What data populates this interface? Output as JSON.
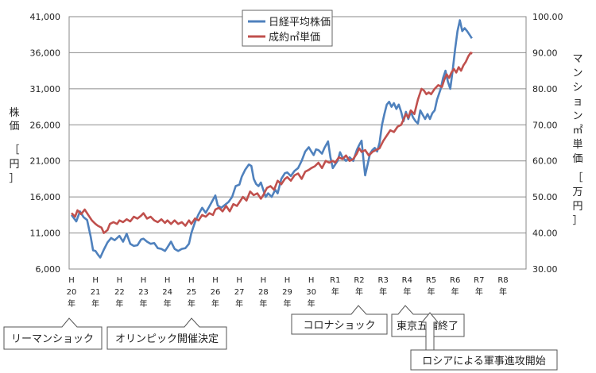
{
  "chart_data": {
    "type": "line",
    "ylabel_left": "株価［円］",
    "ylabel_right": "マンション㎡単価［万円］",
    "left_axis": {
      "min": 6000,
      "max": 41000,
      "ticks": [
        "6,000",
        "11,000",
        "16,000",
        "21,000",
        "26,000",
        "31,000",
        "36,000",
        "41,000"
      ],
      "tick_values": [
        6000,
        11000,
        16000,
        21000,
        26000,
        31000,
        36000,
        41000
      ]
    },
    "right_axis": {
      "min": 30,
      "max": 100,
      "ticks": [
        "30.00",
        "40.00",
        "50.00",
        "60.00",
        "70.00",
        "80.00",
        "90.00",
        "100.00"
      ],
      "tick_values": [
        30,
        40,
        50,
        60,
        70,
        80,
        90,
        100
      ]
    },
    "x_axis": {
      "min": 20,
      "max": 38,
      "labels": [
        {
          "top": "H",
          "mid": "20",
          "bottom": "年",
          "x": 20
        },
        {
          "top": "H",
          "mid": "21",
          "bottom": "年",
          "x": 21
        },
        {
          "top": "H",
          "mid": "22",
          "bottom": "年",
          "x": 22
        },
        {
          "top": "H",
          "mid": "23",
          "bottom": "年",
          "x": 23
        },
        {
          "top": "H",
          "mid": "24",
          "bottom": "年",
          "x": 24
        },
        {
          "top": "H",
          "mid": "25",
          "bottom": "年",
          "x": 25
        },
        {
          "top": "H",
          "mid": "26",
          "bottom": "年",
          "x": 26
        },
        {
          "top": "H",
          "mid": "27",
          "bottom": "年",
          "x": 27
        },
        {
          "top": "H",
          "mid": "28",
          "bottom": "年",
          "x": 28
        },
        {
          "top": "H",
          "mid": "29",
          "bottom": "年",
          "x": 29
        },
        {
          "top": "H",
          "mid": "30",
          "bottom": "年",
          "x": 30
        },
        {
          "top": "R1",
          "mid": "年",
          "bottom": "",
          "x": 31
        },
        {
          "top": "R2",
          "mid": "年",
          "bottom": "",
          "x": 32
        },
        {
          "top": "R3",
          "mid": "年",
          "bottom": "",
          "x": 33
        },
        {
          "top": "R4",
          "mid": "年",
          "bottom": "",
          "x": 34
        },
        {
          "top": "R5",
          "mid": "年",
          "bottom": "",
          "x": 35
        },
        {
          "top": "R6",
          "mid": "年",
          "bottom": "",
          "x": 36
        },
        {
          "top": "R7",
          "mid": "年",
          "bottom": "",
          "x": 37
        },
        {
          "top": "R8",
          "mid": "年",
          "bottom": "",
          "x": 38
        }
      ]
    },
    "grid": true,
    "legend_position": "top-center",
    "series": [
      {
        "name": "日経平均株価",
        "axis": "left",
        "color": "#4f81bd",
        "points": [
          [
            20.0,
            13500
          ],
          [
            20.2,
            12600
          ],
          [
            20.35,
            14000
          ],
          [
            20.5,
            13200
          ],
          [
            20.65,
            12800
          ],
          [
            20.8,
            10500
          ],
          [
            20.9,
            8600
          ],
          [
            21.0,
            8500
          ],
          [
            21.1,
            8000
          ],
          [
            21.2,
            7600
          ],
          [
            21.35,
            8700
          ],
          [
            21.5,
            9700
          ],
          [
            21.65,
            10300
          ],
          [
            21.8,
            10000
          ],
          [
            22.0,
            10600
          ],
          [
            22.15,
            9800
          ],
          [
            22.3,
            10900
          ],
          [
            22.45,
            9500
          ],
          [
            22.6,
            9200
          ],
          [
            22.75,
            9300
          ],
          [
            22.9,
            10100
          ],
          [
            23.0,
            10200
          ],
          [
            23.15,
            9800
          ],
          [
            23.3,
            9500
          ],
          [
            23.45,
            9600
          ],
          [
            23.6,
            8900
          ],
          [
            23.75,
            8800
          ],
          [
            23.9,
            8500
          ],
          [
            24.0,
            9000
          ],
          [
            24.15,
            9800
          ],
          [
            24.3,
            8800
          ],
          [
            24.45,
            8500
          ],
          [
            24.6,
            8800
          ],
          [
            24.75,
            8900
          ],
          [
            24.9,
            9500
          ],
          [
            25.0,
            11000
          ],
          [
            25.15,
            12500
          ],
          [
            25.3,
            13600
          ],
          [
            25.45,
            14500
          ],
          [
            25.6,
            13800
          ],
          [
            25.75,
            14700
          ],
          [
            25.9,
            15600
          ],
          [
            26.0,
            16200
          ],
          [
            26.1,
            14800
          ],
          [
            26.25,
            14500
          ],
          [
            26.4,
            14900
          ],
          [
            26.55,
            15300
          ],
          [
            26.7,
            16000
          ],
          [
            26.85,
            17500
          ],
          [
            27.0,
            17700
          ],
          [
            27.1,
            18800
          ],
          [
            27.25,
            19800
          ],
          [
            27.4,
            20500
          ],
          [
            27.5,
            20300
          ],
          [
            27.6,
            18500
          ],
          [
            27.7,
            17800
          ],
          [
            27.8,
            17500
          ],
          [
            27.9,
            18000
          ],
          [
            28.0,
            17000
          ],
          [
            28.1,
            16000
          ],
          [
            28.2,
            16500
          ],
          [
            28.35,
            16000
          ],
          [
            28.5,
            17000
          ],
          [
            28.6,
            16500
          ],
          [
            28.75,
            18500
          ],
          [
            28.9,
            19300
          ],
          [
            29.0,
            19400
          ],
          [
            29.15,
            18900
          ],
          [
            29.3,
            19600
          ],
          [
            29.45,
            20000
          ],
          [
            29.6,
            21000
          ],
          [
            29.75,
            22300
          ],
          [
            29.9,
            22900
          ],
          [
            30.0,
            22300
          ],
          [
            30.1,
            21800
          ],
          [
            30.2,
            22600
          ],
          [
            30.3,
            22500
          ],
          [
            30.45,
            22000
          ],
          [
            30.55,
            22800
          ],
          [
            30.7,
            23700
          ],
          [
            30.8,
            21500
          ],
          [
            30.9,
            20000
          ],
          [
            31.0,
            20500
          ],
          [
            31.1,
            21000
          ],
          [
            31.2,
            22200
          ],
          [
            31.3,
            21500
          ],
          [
            31.45,
            21000
          ],
          [
            31.6,
            21500
          ],
          [
            31.75,
            21000
          ],
          [
            31.9,
            22500
          ],
          [
            32.0,
            23200
          ],
          [
            32.1,
            23800
          ],
          [
            32.2,
            20500
          ],
          [
            32.25,
            19000
          ],
          [
            32.35,
            20500
          ],
          [
            32.45,
            22000
          ],
          [
            32.55,
            22500
          ],
          [
            32.65,
            22800
          ],
          [
            32.75,
            22300
          ],
          [
            32.85,
            23500
          ],
          [
            32.95,
            26000
          ],
          [
            33.05,
            27500
          ],
          [
            33.15,
            28800
          ],
          [
            33.25,
            29200
          ],
          [
            33.35,
            28500
          ],
          [
            33.45,
            29000
          ],
          [
            33.55,
            28200
          ],
          [
            33.65,
            28800
          ],
          [
            33.75,
            27800
          ],
          [
            33.85,
            26500
          ],
          [
            33.95,
            27800
          ],
          [
            34.05,
            26800
          ],
          [
            34.15,
            27800
          ],
          [
            34.25,
            27000
          ],
          [
            34.35,
            26500
          ],
          [
            34.45,
            26200
          ],
          [
            34.55,
            28000
          ],
          [
            34.65,
            27400
          ],
          [
            34.75,
            26800
          ],
          [
            34.85,
            27500
          ],
          [
            34.95,
            26800
          ],
          [
            35.05,
            27600
          ],
          [
            35.15,
            28000
          ],
          [
            35.25,
            29500
          ],
          [
            35.4,
            31000
          ],
          [
            35.5,
            32500
          ],
          [
            35.6,
            33500
          ],
          [
            35.7,
            32000
          ],
          [
            35.8,
            31000
          ],
          [
            35.9,
            33500
          ],
          [
            36.0,
            36500
          ],
          [
            36.1,
            39000
          ],
          [
            36.2,
            40500
          ],
          [
            36.3,
            39000
          ],
          [
            36.4,
            39400
          ],
          [
            36.5,
            39000
          ],
          [
            36.6,
            38500
          ],
          [
            36.7,
            38000
          ]
        ]
      },
      {
        "name": "成約㎡単価",
        "axis": "right",
        "color": "#c0504d",
        "points": [
          [
            20.0,
            45.5
          ],
          [
            20.15,
            44.5
          ],
          [
            20.25,
            46.3
          ],
          [
            20.4,
            45.2
          ],
          [
            20.55,
            46.5
          ],
          [
            20.7,
            45.0
          ],
          [
            20.85,
            43.5
          ],
          [
            21.0,
            42.5
          ],
          [
            21.1,
            42.0
          ],
          [
            21.25,
            41.5
          ],
          [
            21.35,
            40.0
          ],
          [
            21.5,
            40.8
          ],
          [
            21.6,
            42.5
          ],
          [
            21.75,
            43.0
          ],
          [
            21.9,
            42.5
          ],
          [
            22.0,
            43.5
          ],
          [
            22.15,
            43.0
          ],
          [
            22.3,
            43.8
          ],
          [
            22.45,
            43.2
          ],
          [
            22.6,
            44.5
          ],
          [
            22.75,
            44.0
          ],
          [
            22.9,
            44.8
          ],
          [
            23.0,
            45.5
          ],
          [
            23.15,
            44.0
          ],
          [
            23.3,
            44.5
          ],
          [
            23.45,
            43.5
          ],
          [
            23.6,
            43.0
          ],
          [
            23.75,
            43.8
          ],
          [
            23.9,
            42.8
          ],
          [
            24.0,
            43.5
          ],
          [
            24.15,
            42.5
          ],
          [
            24.3,
            43.5
          ],
          [
            24.45,
            42.5
          ],
          [
            24.6,
            43.0
          ],
          [
            24.75,
            42.0
          ],
          [
            24.9,
            43.5
          ],
          [
            25.0,
            42.5
          ],
          [
            25.15,
            44.0
          ],
          [
            25.3,
            43.5
          ],
          [
            25.45,
            45.0
          ],
          [
            25.6,
            44.5
          ],
          [
            25.75,
            45.5
          ],
          [
            25.9,
            45.0
          ],
          [
            26.0,
            46.5
          ],
          [
            26.15,
            47.0
          ],
          [
            26.3,
            46.0
          ],
          [
            26.45,
            47.5
          ],
          [
            26.6,
            46.0
          ],
          [
            26.75,
            48.0
          ],
          [
            26.9,
            47.5
          ],
          [
            27.0,
            48.5
          ],
          [
            27.15,
            50.0
          ],
          [
            27.3,
            49.0
          ],
          [
            27.45,
            51.5
          ],
          [
            27.6,
            50.5
          ],
          [
            27.75,
            51.0
          ],
          [
            27.9,
            49.5
          ],
          [
            28.0,
            50.5
          ],
          [
            28.15,
            52.5
          ],
          [
            28.3,
            53.0
          ],
          [
            28.45,
            52.0
          ],
          [
            28.6,
            54.5
          ],
          [
            28.75,
            53.5
          ],
          [
            28.9,
            55.0
          ],
          [
            29.0,
            55.5
          ],
          [
            29.15,
            54.5
          ],
          [
            29.3,
            56.0
          ],
          [
            29.45,
            56.5
          ],
          [
            29.6,
            55.0
          ],
          [
            29.75,
            57.0
          ],
          [
            29.9,
            57.5
          ],
          [
            30.0,
            58.0
          ],
          [
            30.15,
            58.5
          ],
          [
            30.3,
            59.5
          ],
          [
            30.45,
            58.0
          ],
          [
            30.6,
            60.0
          ],
          [
            30.75,
            59.5
          ],
          [
            30.9,
            60.0
          ],
          [
            31.0,
            59.5
          ],
          [
            31.15,
            61.0
          ],
          [
            31.3,
            60.5
          ],
          [
            31.45,
            61.5
          ],
          [
            31.6,
            60.0
          ],
          [
            31.75,
            60.5
          ],
          [
            31.9,
            62.0
          ],
          [
            32.0,
            63.5
          ],
          [
            32.1,
            62.5
          ],
          [
            32.25,
            63.0
          ],
          [
            32.4,
            61.5
          ],
          [
            32.55,
            62.5
          ],
          [
            32.7,
            63.0
          ],
          [
            32.85,
            63.5
          ],
          [
            33.0,
            65.5
          ],
          [
            33.15,
            67.0
          ],
          [
            33.3,
            68.5
          ],
          [
            33.45,
            68.0
          ],
          [
            33.6,
            69.5
          ],
          [
            33.75,
            70.0
          ],
          [
            33.85,
            71.5
          ],
          [
            33.95,
            73.0
          ],
          [
            34.05,
            72.0
          ],
          [
            34.15,
            74.0
          ],
          [
            34.3,
            73.0
          ],
          [
            34.45,
            77.0
          ],
          [
            34.6,
            80.0
          ],
          [
            34.7,
            79.5
          ],
          [
            34.8,
            78.5
          ],
          [
            34.9,
            79.0
          ],
          [
            35.0,
            78.5
          ],
          [
            35.15,
            80.0
          ],
          [
            35.3,
            81.0
          ],
          [
            35.45,
            80.5
          ],
          [
            35.55,
            82.5
          ],
          [
            35.65,
            84.0
          ],
          [
            35.75,
            83.0
          ],
          [
            35.85,
            84.5
          ],
          [
            35.95,
            85.5
          ],
          [
            36.05,
            84.5
          ],
          [
            36.15,
            86.0
          ],
          [
            36.25,
            85.0
          ],
          [
            36.35,
            86.5
          ],
          [
            36.45,
            87.5
          ],
          [
            36.55,
            89.0
          ],
          [
            36.65,
            90.0
          ],
          [
            36.72,
            89.8
          ]
        ]
      }
    ],
    "annotations": [
      {
        "text": "リーマンショック",
        "x": 20
      },
      {
        "text": "オリンピック開催決定",
        "x": 25
      },
      {
        "text": "コロナショック",
        "x": 32
      },
      {
        "text": "東京五輪終了",
        "x": 34
      },
      {
        "text": "ロシアによる軍事進攻開始",
        "x": 35
      }
    ]
  }
}
